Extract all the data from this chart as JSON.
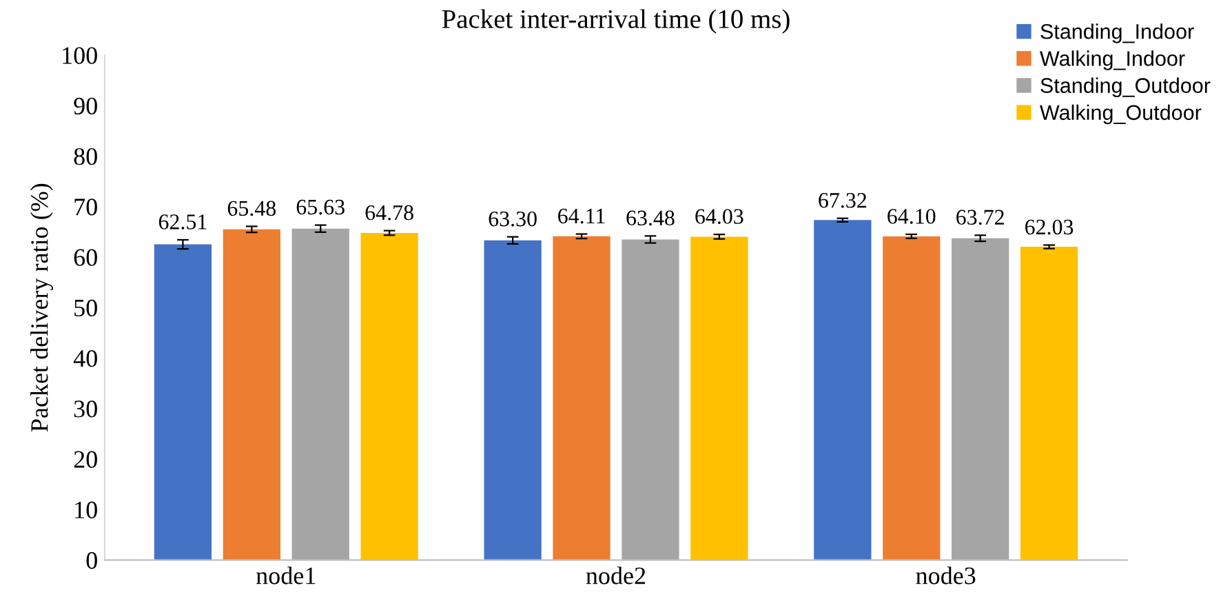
{
  "chart_data": {
    "type": "bar",
    "title": "Packet inter-arrival time (10 ms)",
    "ylabel": "Packet delivery ratio (%)",
    "categories": [
      "node1",
      "node2",
      "node3"
    ],
    "series": [
      {
        "name": "Standing_Indoor",
        "color": "#4472c4",
        "values": [
          62.51,
          63.3,
          67.32
        ],
        "errors": [
          0.9,
          0.7,
          0.35
        ],
        "value_labels": [
          "62.51",
          "63.30",
          "67.32"
        ]
      },
      {
        "name": "Walking_Indoor",
        "color": "#ed7d31",
        "values": [
          65.48,
          64.11,
          64.1
        ],
        "errors": [
          0.6,
          0.45,
          0.4
        ],
        "value_labels": [
          "65.48",
          "64.11",
          "64.10"
        ]
      },
      {
        "name": "Standing_Outdoor",
        "color": "#a5a5a5",
        "values": [
          65.63,
          63.48,
          63.72
        ],
        "errors": [
          0.7,
          0.7,
          0.6
        ],
        "value_labels": [
          "65.63",
          "63.48",
          "63.72"
        ]
      },
      {
        "name": "Walking_Outdoor",
        "color": "#ffc000",
        "values": [
          64.78,
          64.03,
          62.03
        ],
        "errors": [
          0.45,
          0.45,
          0.35
        ],
        "value_labels": [
          "64.78",
          "64.03",
          "62.03"
        ]
      }
    ],
    "ylim": [
      0,
      100
    ],
    "yticks": [
      0,
      10,
      20,
      30,
      40,
      50,
      60,
      70,
      80,
      90,
      100
    ],
    "grid": false,
    "legend": "top right"
  }
}
